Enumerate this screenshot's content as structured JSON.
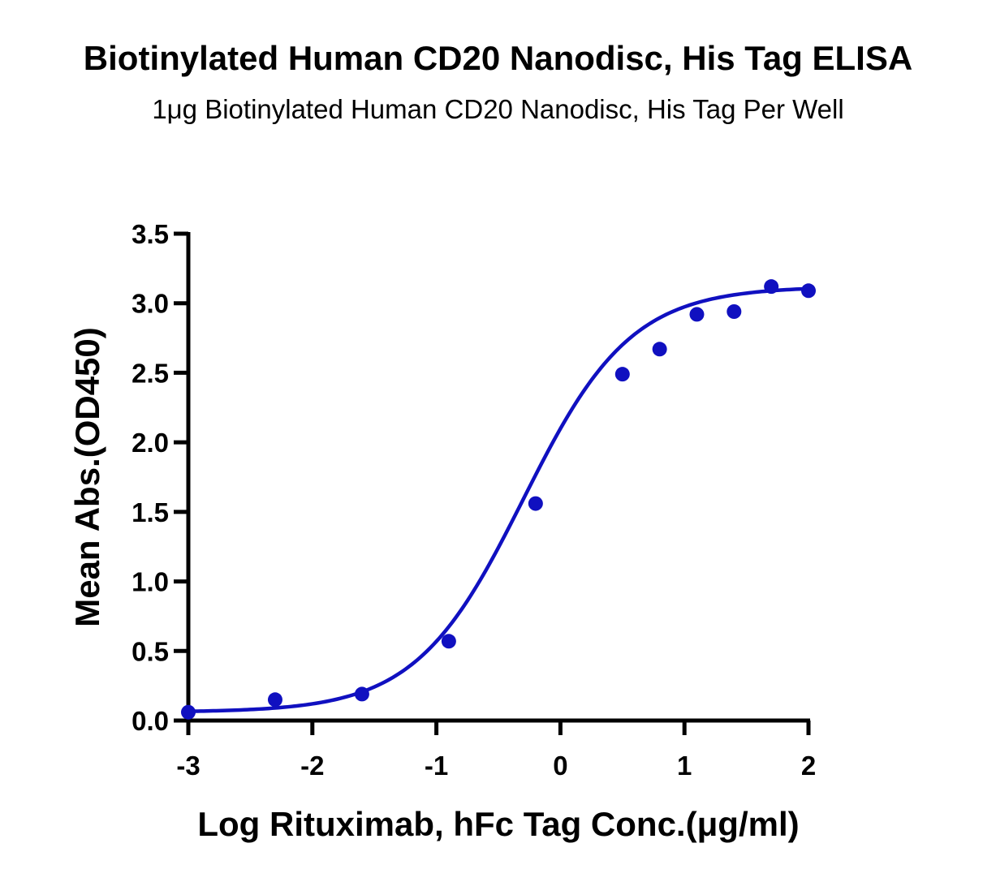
{
  "chart_data": {
    "type": "scatter",
    "title": "Biotinylated Human CD20 Nanodisc, His Tag ELISA",
    "subtitle": "1μg Biotinylated Human CD20 Nanodisc, His Tag Per Well",
    "xlabel": "Log Rituximab, hFc Tag Conc.(μg/ml)",
    "ylabel": "Mean Abs.(OD450)",
    "xlim": [
      -3,
      2
    ],
    "ylim": [
      0,
      3.5
    ],
    "x_ticks": [
      -3,
      -2,
      -1,
      0,
      1,
      2
    ],
    "x_tick_labels": [
      "-3",
      "-2",
      "-1",
      "0",
      "1",
      "2"
    ],
    "y_ticks": [
      0,
      0.5,
      1,
      1.5,
      2,
      2.5,
      3,
      3.5
    ],
    "y_tick_labels": [
      "0.0",
      "0.5",
      "1.0",
      "1.5",
      "2.0",
      "2.5",
      "3.0",
      "3.5"
    ],
    "color": "#1010c0",
    "grid": false,
    "series": [
      {
        "x": [
          -3.0,
          -2.3,
          -1.6,
          -0.9,
          -0.2,
          0.5,
          0.8,
          1.1,
          1.4,
          1.7,
          2.0
        ],
        "y": [
          0.06,
          0.15,
          0.19,
          0.57,
          1.56,
          2.49,
          2.67,
          2.92,
          2.94,
          3.12,
          3.09
        ]
      }
    ],
    "fit": {
      "type": "4PL",
      "bottom": 0.06,
      "top": 3.12,
      "log_ec50": -0.3,
      "hill_slope": 1.0
    }
  }
}
